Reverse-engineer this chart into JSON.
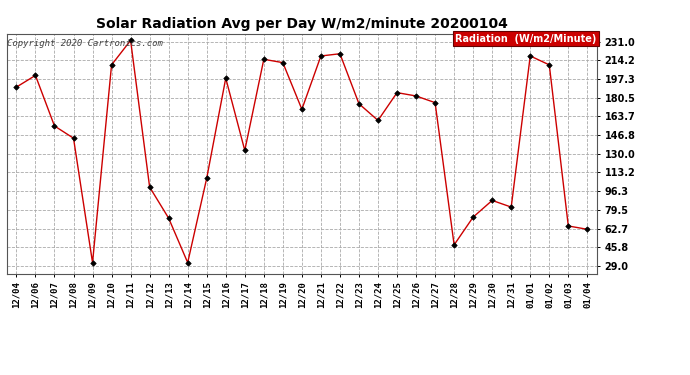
{
  "title": "Solar Radiation Avg per Day W/m2/minute 20200104",
  "copyright": "Copyright 2020 Cartronics.com",
  "legend_label": "Radiation  (W/m2/Minute)",
  "background_color": "#ffffff",
  "plot_bg_color": "#ffffff",
  "grid_color": "#aaaaaa",
  "line_color": "#cc0000",
  "marker_color": "#000000",
  "legend_bg": "#cc0000",
  "legend_text_color": "#ffffff",
  "x_labels": [
    "12/04",
    "12/06",
    "12/07",
    "12/08",
    "12/09",
    "12/10",
    "12/11",
    "12/12",
    "12/13",
    "12/14",
    "12/15",
    "12/16",
    "12/17",
    "12/18",
    "12/19",
    "12/20",
    "12/21",
    "12/22",
    "12/23",
    "12/24",
    "12/25",
    "12/26",
    "12/27",
    "12/28",
    "12/29",
    "12/30",
    "12/31",
    "01/01",
    "01/02",
    "01/03",
    "01/04"
  ],
  "y_values": [
    190.0,
    200.5,
    155.0,
    144.0,
    32.0,
    210.0,
    232.0,
    100.0,
    72.0,
    32.0,
    108.0,
    198.0,
    133.0,
    215.0,
    212.0,
    170.0,
    218.0,
    220.0,
    175.0,
    160.0,
    185.0,
    182.0,
    176.0,
    48.0,
    73.0,
    88.0,
    82.0,
    218.0,
    210.0,
    65.0,
    62.0
  ],
  "yticks": [
    29.0,
    45.8,
    62.7,
    79.5,
    96.3,
    113.2,
    130.0,
    146.8,
    163.7,
    180.5,
    197.3,
    214.2,
    231.0
  ],
  "ylim": [
    22.0,
    238.0
  ],
  "title_fontsize": 10,
  "tick_fontsize": 6.5,
  "ytick_fontsize": 7,
  "copyright_fontsize": 6.5,
  "legend_fontsize": 7
}
